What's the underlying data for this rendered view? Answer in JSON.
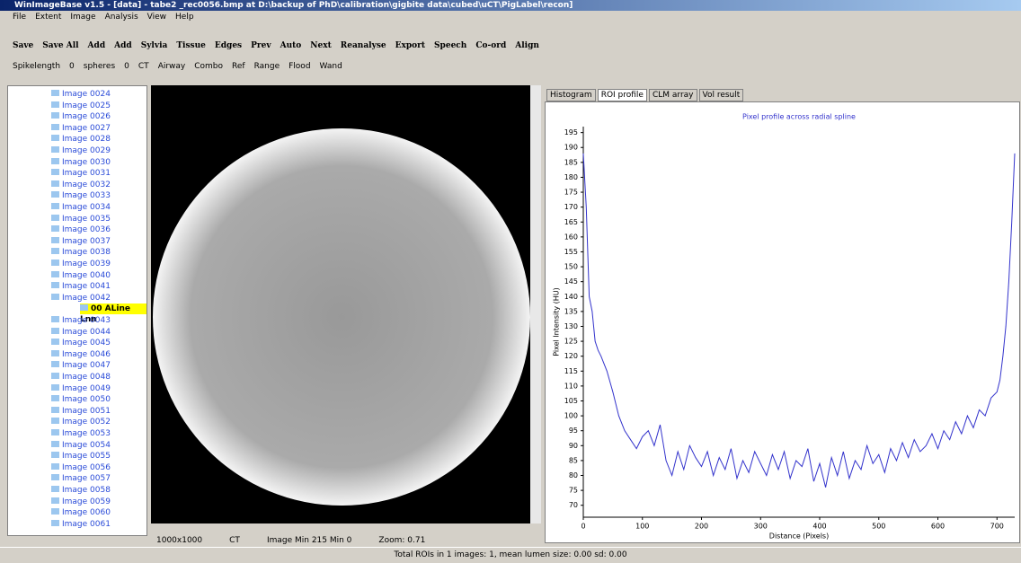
{
  "window": {
    "title": "WinImageBase v1.5 - [data] - tabe2 _rec0056.bmp at D:\\backup of PhD\\calibration\\gigbite data\\cubed\\uCT\\PigLabel\\recon]",
    "menu": [
      "File",
      "Extent",
      "Image",
      "Analysis",
      "View",
      "Help"
    ],
    "toolbar1": [
      "Save",
      "Save All",
      "Add",
      "Add",
      "Sylvia",
      "Tissue",
      "Edges",
      "Prev",
      "Auto",
      "Next",
      "Reanalyse",
      "Export",
      "Speech",
      "Co-ord",
      "Align"
    ],
    "toolbar2": [
      "Spikelength",
      "0",
      "spheres",
      "0",
      "CT",
      "Airway",
      "Combo",
      "Ref",
      "Range",
      "Flood",
      "Wand"
    ],
    "tree": [
      "Image 0024",
      "Image 0025",
      "Image 0026",
      "Image 0027",
      "Image 0028",
      "Image 0029",
      "Image 0030",
      "Image 0031",
      "Image 0032",
      "Image 0033",
      "Image 0034",
      "Image 0035",
      "Image 0036",
      "Image 0037",
      "Image 0038",
      "Image 0039",
      "Image 0040",
      "Image 0041",
      "Image 0042",
      "00 ALine Lnn",
      "Image 0043",
      "Image 0044",
      "Image 0045",
      "Image 0046",
      "Image 0047",
      "Image 0048",
      "Image 0049",
      "Image 0050",
      "Image 0051",
      "Image 0052",
      "Image 0053",
      "Image 0054",
      "Image 0055",
      "Image 0056",
      "Image 0057",
      "Image 0058",
      "Image 0059",
      "Image 0060",
      "Image 0061"
    ],
    "tabs": [
      "Histogram",
      "ROI profile",
      "CLM array",
      "Vol result"
    ],
    "image_status": [
      "1000x1000",
      "CT",
      "Image Min 215 Min 0",
      "Zoom: 0.71"
    ],
    "status": "Total ROIs in 1 images: 1, mean lumen size: 0.00 sd: 0.00"
  },
  "chart_data": {
    "type": "line",
    "title": "Pixel profile across radial spline",
    "x_label": "Distance (Pixels)",
    "y_label": "Pixel Intensity (HU)",
    "x": [
      0,
      5,
      10,
      15,
      20,
      25,
      30,
      40,
      50,
      60,
      70,
      80,
      90,
      100,
      110,
      120,
      130,
      140,
      150,
      160,
      170,
      180,
      190,
      200,
      210,
      220,
      230,
      240,
      250,
      260,
      270,
      280,
      290,
      300,
      310,
      320,
      330,
      340,
      350,
      360,
      370,
      380,
      390,
      400,
      410,
      420,
      430,
      440,
      450,
      460,
      470,
      480,
      490,
      500,
      510,
      520,
      530,
      540,
      550,
      560,
      570,
      580,
      590,
      600,
      610,
      620,
      630,
      640,
      650,
      660,
      670,
      680,
      690,
      700,
      705,
      710,
      715,
      720,
      725,
      730
    ],
    "series": [
      {
        "color": "#3333cc",
        "values": [
          188,
          170,
          140,
          135,
          125,
          122,
          120,
          115,
          108,
          100,
          95,
          92,
          89,
          93,
          95,
          90,
          97,
          85,
          80,
          88,
          82,
          90,
          86,
          83,
          88,
          80,
          86,
          82,
          89,
          79,
          85,
          81,
          88,
          84,
          80,
          87,
          82,
          88,
          79,
          85,
          83,
          89,
          78,
          84,
          76,
          86,
          80,
          88,
          79,
          85,
          82,
          90,
          84,
          87,
          81,
          89,
          85,
          91,
          86,
          92,
          88,
          90,
          94,
          89,
          95,
          92,
          98,
          94,
          100,
          96,
          102,
          100,
          106,
          108,
          112,
          120,
          130,
          145,
          165,
          188
        ]
      }
    ],
    "xlim": [
      0,
      730
    ],
    "ylim": [
      66,
      197
    ],
    "xticks": [
      0,
      100,
      200,
      300,
      400,
      500,
      600,
      700
    ],
    "yticks": [
      70,
      75,
      80,
      85,
      90,
      95,
      100,
      105,
      110,
      115,
      120,
      125,
      130,
      135,
      140,
      145,
      150,
      155,
      160,
      165,
      170,
      175,
      180,
      185,
      190,
      195
    ]
  }
}
